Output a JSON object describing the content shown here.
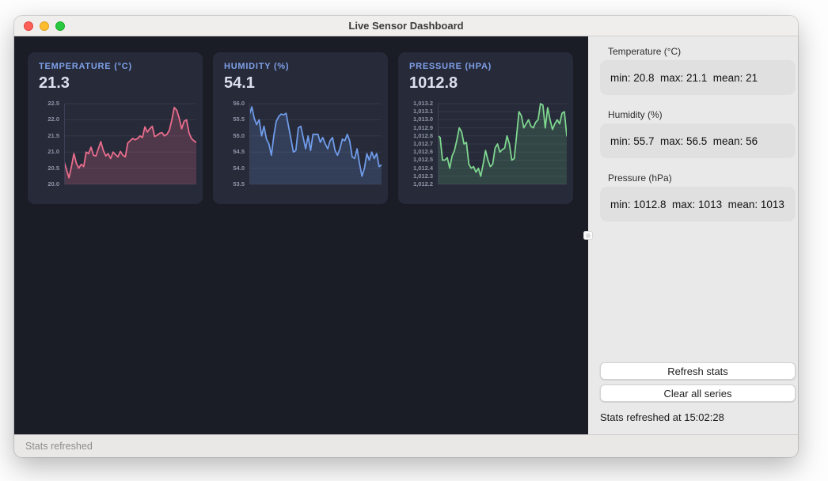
{
  "window": {
    "title": "Live Sensor Dashboard"
  },
  "cards": [
    {
      "title": "TEMPERATURE (°C)",
      "value": "21.3"
    },
    {
      "title": "HUMIDITY (%)",
      "value": "54.1"
    },
    {
      "title": "PRESSURE (HPA)",
      "value": "1012.8"
    }
  ],
  "chart_data": [
    {
      "type": "line",
      "title": "TEMPERATURE (°C)",
      "current_value": 21.3,
      "ylim": [
        20.0,
        22.5
      ],
      "ytick_labels": [
        "22.5",
        "22.0",
        "21.5",
        "21.0",
        "20.5",
        "20.0"
      ],
      "line_color": "#E96D8C",
      "fill_color": "rgba(233,109,140,0.22)",
      "label_col_width": 32,
      "values": [
        20.7,
        20.45,
        20.2,
        20.55,
        20.95,
        20.65,
        20.5,
        20.62,
        20.55,
        21.0,
        20.95,
        21.15,
        20.9,
        20.88,
        21.1,
        21.32,
        21.05,
        20.88,
        20.95,
        20.8,
        21.0,
        20.92,
        20.85,
        21.02,
        20.9,
        20.85,
        21.28,
        21.35,
        21.42,
        21.38,
        21.42,
        21.5,
        21.45,
        21.78,
        21.62,
        21.72,
        21.8,
        21.48,
        21.52,
        21.58,
        21.6,
        21.5,
        21.55,
        21.68,
        22.0,
        22.38,
        22.3,
        22.05,
        21.72,
        21.95,
        22.0,
        21.6,
        21.42,
        21.35,
        21.3
      ]
    },
    {
      "type": "line",
      "title": "HUMIDITY (%)",
      "current_value": 54.1,
      "ylim": [
        53.5,
        56.0
      ],
      "ytick_labels": [
        "56.0",
        "55.5",
        "55.0",
        "54.5",
        "54.0",
        "53.5"
      ],
      "line_color": "#6F9BE8",
      "fill_color": "rgba(111,155,232,0.18)",
      "label_col_width": 32,
      "values": [
        55.65,
        55.9,
        55.55,
        55.35,
        55.5,
        55.0,
        55.3,
        54.9,
        54.75,
        54.4,
        55.0,
        55.45,
        55.6,
        55.68,
        55.65,
        55.7,
        55.3,
        54.9,
        54.5,
        54.55,
        55.25,
        55.3,
        54.95,
        54.6,
        55.0,
        54.55,
        55.05,
        55.05,
        55.05,
        54.8,
        54.95,
        54.75,
        54.6,
        54.85,
        54.95,
        54.55,
        54.4,
        54.6,
        54.9,
        54.85,
        55.05,
        54.85,
        54.35,
        54.3,
        54.6,
        54.15,
        53.75,
        54.0,
        54.45,
        54.25,
        54.5,
        54.3,
        54.45,
        54.05,
        54.1
      ]
    },
    {
      "type": "line",
      "title": "PRESSURE (HPA)",
      "current_value": 1012.8,
      "ylim": [
        1012.2,
        1013.2
      ],
      "ytick_labels": [
        "1,013.2",
        "1,013.1",
        "1,013.0",
        "1,012.9",
        "1,012.8",
        "1,012.7",
        "1,012.6",
        "1,012.5",
        "1,012.4",
        "1,012.3",
        "1,012.2"
      ],
      "line_color": "#7FD890",
      "fill_color": "rgba(127,216,144,0.16)",
      "label_col_width": 36,
      "values": [
        1012.8,
        1012.78,
        1012.5,
        1012.5,
        1012.53,
        1012.4,
        1012.55,
        1012.62,
        1012.75,
        1012.9,
        1012.85,
        1012.7,
        1012.72,
        1012.45,
        1012.4,
        1012.42,
        1012.35,
        1012.4,
        1012.3,
        1012.45,
        1012.62,
        1012.5,
        1012.42,
        1012.45,
        1012.65,
        1012.7,
        1012.6,
        1012.63,
        1012.65,
        1012.8,
        1012.7,
        1012.5,
        1012.52,
        1012.8,
        1013.1,
        1013.05,
        1012.9,
        1012.95,
        1013.0,
        1012.92,
        1012.9,
        1012.97,
        1013.0,
        1013.2,
        1013.18,
        1012.9,
        1013.15,
        1013.0,
        1012.88,
        1012.95,
        1013.0,
        1012.95,
        1013.08,
        1013.1,
        1012.8
      ]
    }
  ],
  "sidebar": {
    "sections": [
      {
        "label": "Temperature (°C)",
        "stats_text": "min: 20.8  max: 21.1  mean: 21",
        "min": 20.8,
        "max": 21.1,
        "mean": 21
      },
      {
        "label": "Humidity (%)",
        "stats_text": "min: 55.7  max: 56.5  mean: 56",
        "min": 55.7,
        "max": 56.5,
        "mean": 56
      },
      {
        "label": "Pressure (hPa)",
        "stats_text": "min: 1012.8  max: 1013  mean: 1013",
        "min": 1012.8,
        "max": 1013,
        "mean": 1013
      }
    ],
    "refresh_button": "Refresh stats",
    "clear_button": "Clear all series",
    "refreshed_text": "Stats refreshed at 15:02:28"
  },
  "statusbar": {
    "text": "Stats refreshed"
  },
  "colors": {
    "dashboard_bg": "#1A1C26",
    "card_bg": "#262A39",
    "card_title": "#7FA0E8",
    "temperature_line": "#E96D8C",
    "humidity_line": "#6F9BE8",
    "pressure_line": "#7FD890",
    "traffic_red": "#FF5F57",
    "traffic_yellow": "#FEBC2E",
    "traffic_green": "#28C840"
  }
}
